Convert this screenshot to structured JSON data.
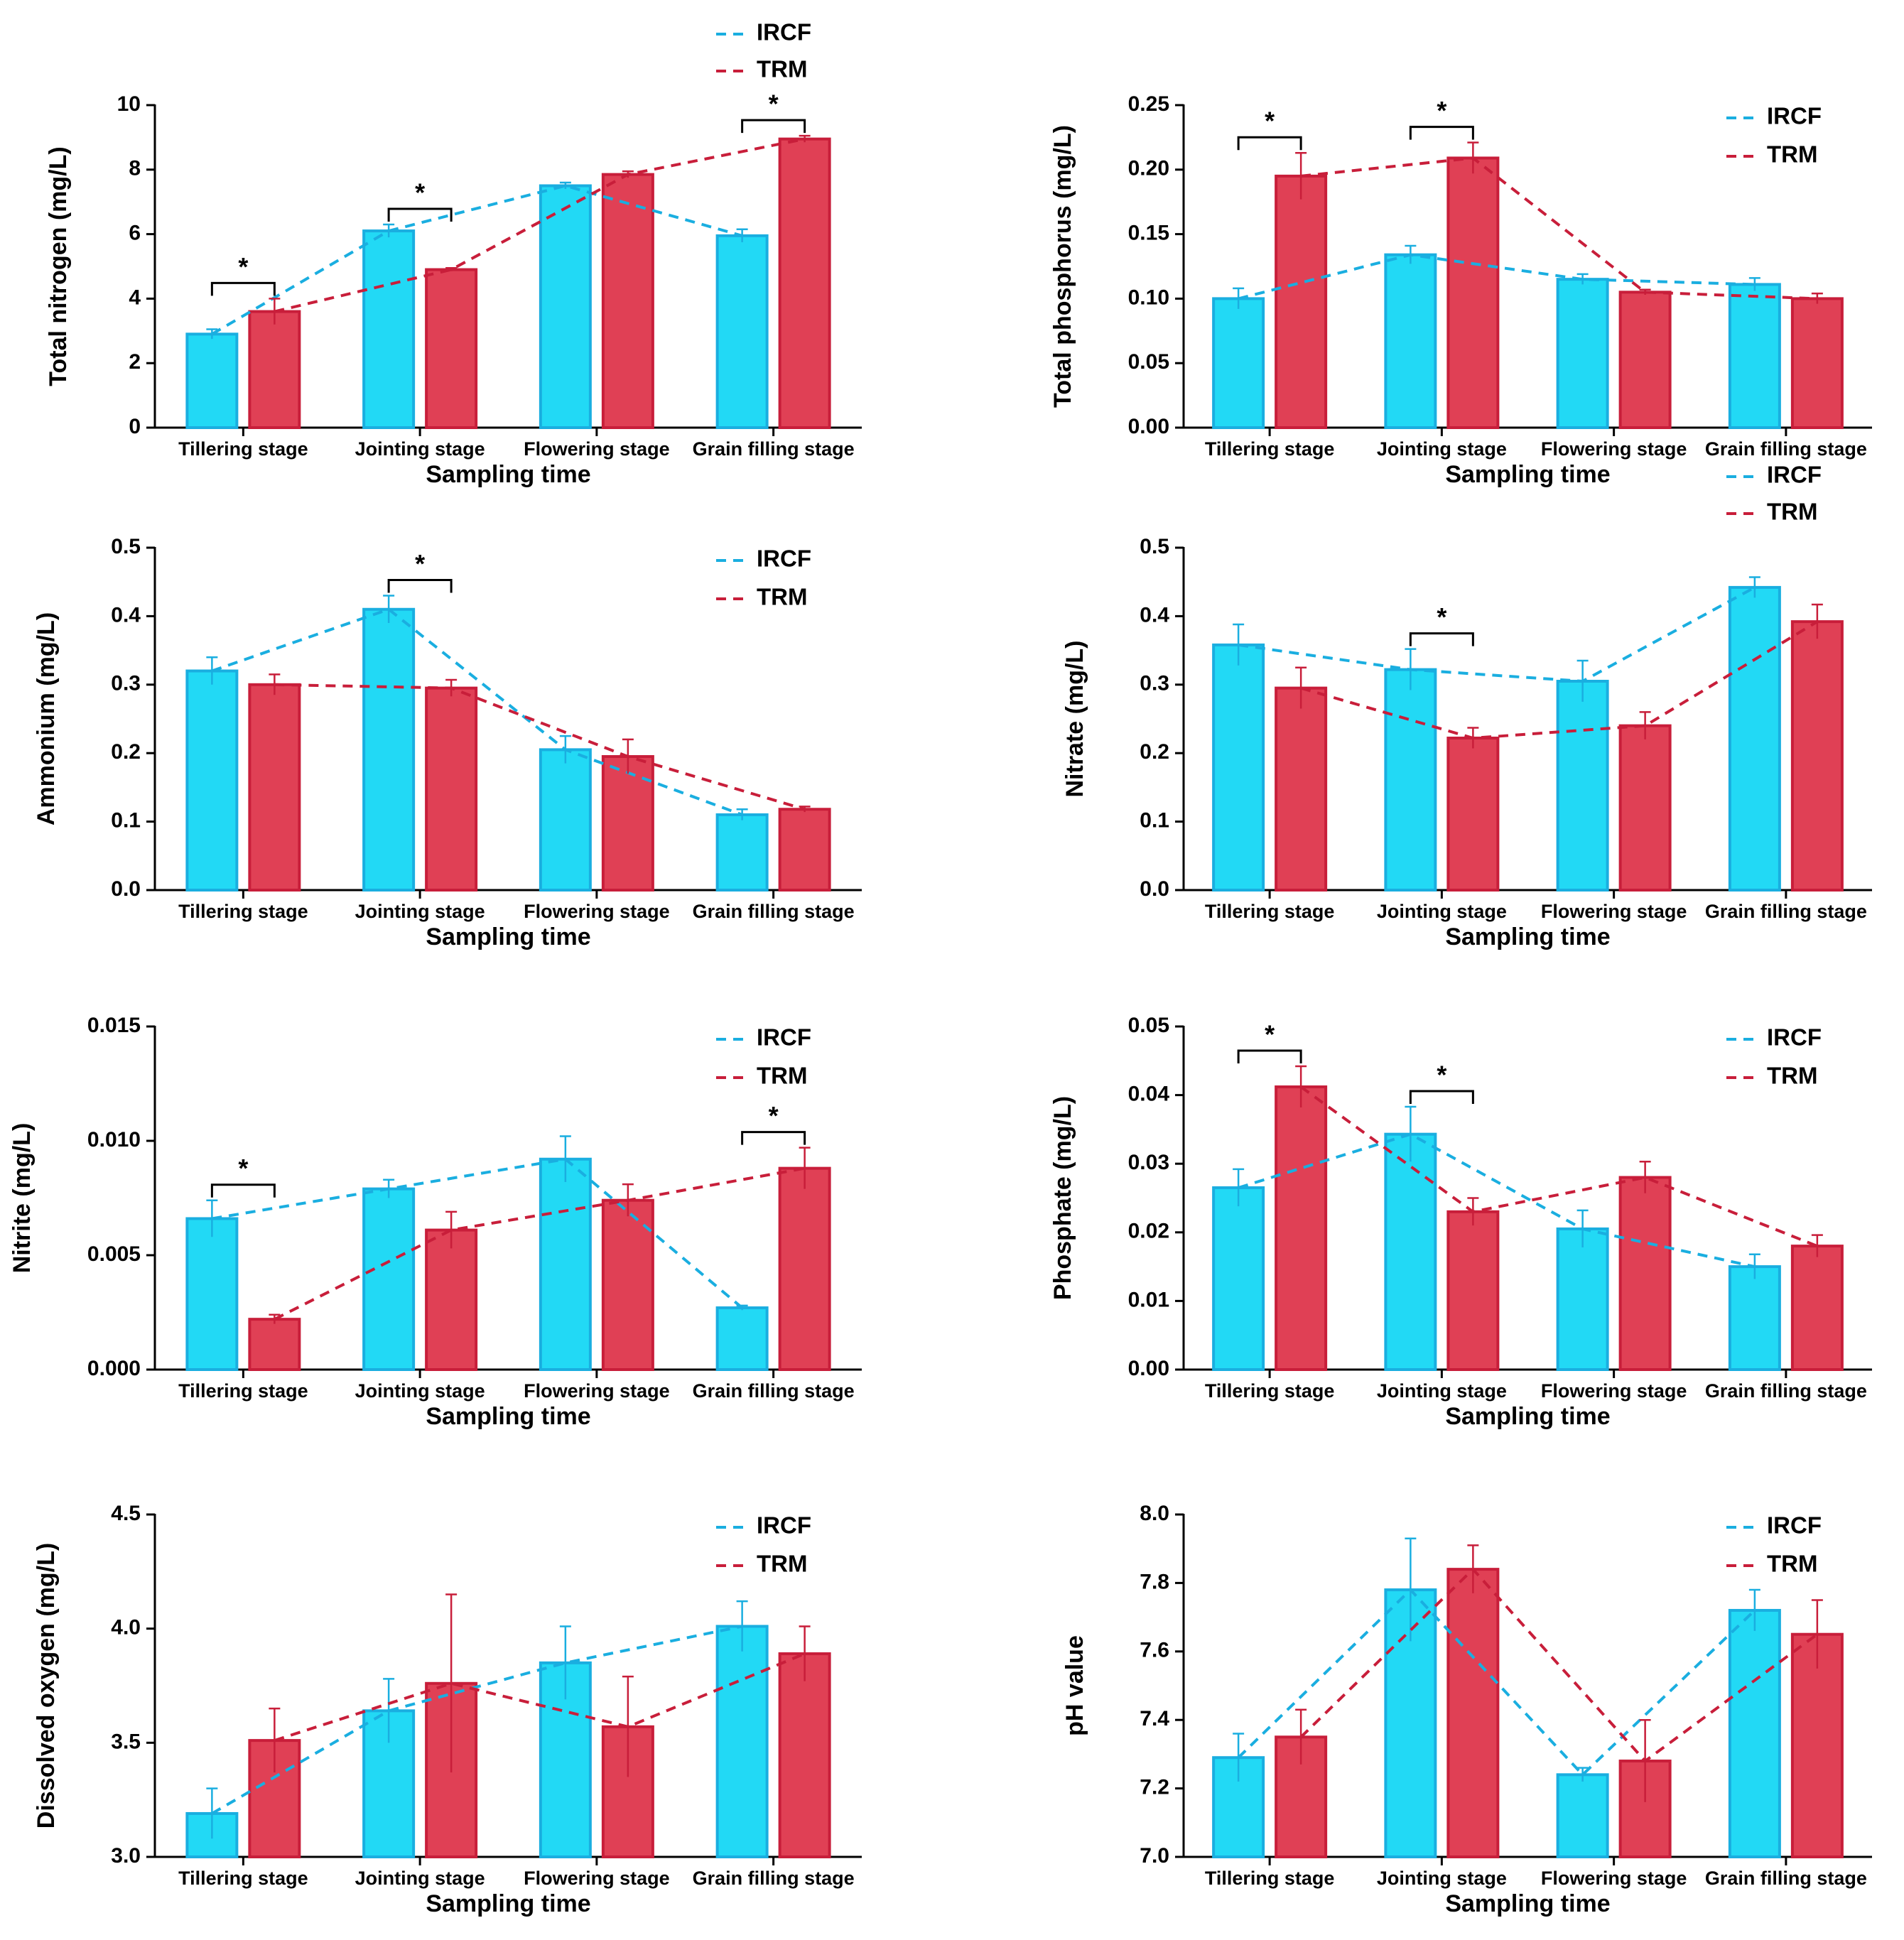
{
  "chart_data": [
    {
      "type": "bar",
      "ylabel": "Total nitrogen (mg/L)",
      "xlabel": "Sampling time",
      "categories": [
        "Tillering stage",
        "Jointing stage",
        "Flowering stage",
        "Grain filling stage"
      ],
      "series": [
        {
          "name": "IRCF",
          "color": "#22d9f5",
          "edgecolor": "#1aaee0",
          "values": [
            2.9,
            6.1,
            7.5,
            5.95
          ],
          "errors": [
            0.15,
            0.2,
            0.1,
            0.2
          ]
        },
        {
          "name": "TRM",
          "color": "#e04055",
          "edgecolor": "#c81e3a",
          "values": [
            3.6,
            4.9,
            7.85,
            8.95
          ],
          "errors": [
            0.4,
            0.05,
            0.1,
            0.1
          ]
        }
      ],
      "ylim": [
        0,
        10
      ],
      "yticks": [
        0,
        2,
        4,
        6,
        8,
        10
      ],
      "legend": "top",
      "annotations": [
        {
          "x": 0,
          "text": "*"
        },
        {
          "x": 1,
          "text": "*"
        },
        {
          "x": 3,
          "text": "*"
        }
      ]
    },
    {
      "type": "bar",
      "ylabel": "Total phosphorus (mg/L)",
      "xlabel": "Sampling time",
      "categories": [
        "Tillering stage",
        "Jointing stage",
        "Flowering stage",
        "Grain filling stage"
      ],
      "series": [
        {
          "name": "IRCF",
          "color": "#22d9f5",
          "edgecolor": "#1aaee0",
          "values": [
            0.1,
            0.134,
            0.115,
            0.111
          ],
          "errors": [
            0.008,
            0.007,
            0.004,
            0.005
          ]
        },
        {
          "name": "TRM",
          "color": "#e04055",
          "edgecolor": "#c81e3a",
          "values": [
            0.195,
            0.209,
            0.105,
            0.1
          ],
          "errors": [
            0.018,
            0.012,
            0.002,
            0.004
          ]
        }
      ],
      "ylim": [
        0,
        0.25
      ],
      "yticks": [
        {
          "value": 0,
          "label": "0.00"
        },
        0.05,
        {
          "value": 0.1,
          "label": "0.10"
        },
        0.15,
        {
          "value": 0.2,
          "label": "0.20"
        },
        0.25
      ],
      "legend": "upper right",
      "annotations": [
        {
          "x": 0,
          "text": "*"
        },
        {
          "x": 1,
          "text": "*"
        }
      ]
    },
    {
      "type": "bar",
      "ylabel": "Ammonium (mg/L)",
      "xlabel": "Sampling time",
      "categories": [
        "Tillering stage",
        "Jointing stage",
        "Flowering stage",
        "Grain filling stage"
      ],
      "series": [
        {
          "name": "IRCF",
          "color": "#22d9f5",
          "edgecolor": "#1aaee0",
          "values": [
            0.32,
            0.41,
            0.205,
            0.11
          ],
          "errors": [
            0.02,
            0.02,
            0.02,
            0.008
          ]
        },
        {
          "name": "TRM",
          "color": "#e04055",
          "edgecolor": "#c81e3a",
          "values": [
            0.3,
            0.295,
            0.195,
            0.118
          ],
          "errors": [
            0.015,
            0.012,
            0.025,
            0.004
          ]
        }
      ],
      "ylim": [
        0,
        0.5
      ],
      "yticks": [
        {
          "value": 0,
          "label": "0.0"
        },
        0.1,
        0.2,
        0.3,
        0.4,
        0.5
      ],
      "legend": "upper right",
      "annotations": [
        {
          "x": 1,
          "text": "*"
        }
      ]
    },
    {
      "type": "bar",
      "ylabel": "Nitrate (mg/L)",
      "xlabel": "Sampling time",
      "categories": [
        "Tillering stage",
        "Jointing stage",
        "Flowering stage",
        "Grain filling stage"
      ],
      "series": [
        {
          "name": "IRCF",
          "color": "#22d9f5",
          "edgecolor": "#1aaee0",
          "values": [
            0.358,
            0.322,
            0.305,
            0.442
          ],
          "errors": [
            0.03,
            0.03,
            0.03,
            0.015
          ]
        },
        {
          "name": "TRM",
          "color": "#e04055",
          "edgecolor": "#c81e3a",
          "values": [
            0.295,
            0.222,
            0.24,
            0.392
          ],
          "errors": [
            0.03,
            0.015,
            0.02,
            0.025
          ]
        }
      ],
      "ylim": [
        0,
        0.5
      ],
      "yticks": [
        {
          "value": 0,
          "label": "0.0"
        },
        0.1,
        0.2,
        0.3,
        0.4,
        0.5
      ],
      "legend": "top",
      "annotations": [
        {
          "x": 1,
          "text": "*"
        }
      ]
    },
    {
      "type": "bar",
      "ylabel": "Nitrite (mg/L)",
      "xlabel": "Sampling time",
      "categories": [
        "Tillering stage",
        "Jointing stage",
        "Flowering stage",
        "Grain filling stage"
      ],
      "series": [
        {
          "name": "IRCF",
          "color": "#22d9f5",
          "edgecolor": "#1aaee0",
          "values": [
            0.0066,
            0.0079,
            0.0092,
            0.0027
          ],
          "errors": [
            0.0008,
            0.0004,
            0.001,
            0.0001
          ]
        },
        {
          "name": "TRM",
          "color": "#e04055",
          "edgecolor": "#c81e3a",
          "values": [
            0.0022,
            0.0061,
            0.0074,
            0.0088
          ],
          "errors": [
            0.0002,
            0.0008,
            0.0007,
            0.0009
          ]
        }
      ],
      "ylim": [
        0,
        0.015
      ],
      "yticks": [
        {
          "value": 0,
          "label": "0.000"
        },
        0.005,
        {
          "value": 0.01,
          "label": "0.010"
        },
        0.015
      ],
      "legend": "upper right",
      "annotations": [
        {
          "x": 0,
          "text": "*"
        },
        {
          "x": 3,
          "text": "*"
        }
      ]
    },
    {
      "type": "bar",
      "ylabel": "Phosphate (mg/L)",
      "xlabel": "Sampling time",
      "categories": [
        "Tillering stage",
        "Jointing stage",
        "Flowering stage",
        "Grain filling stage"
      ],
      "series": [
        {
          "name": "IRCF",
          "color": "#22d9f5",
          "edgecolor": "#1aaee0",
          "values": [
            0.0265,
            0.0343,
            0.0205,
            0.015
          ],
          "errors": [
            0.0027,
            0.004,
            0.0027,
            0.0018
          ]
        },
        {
          "name": "TRM",
          "color": "#e04055",
          "edgecolor": "#c81e3a",
          "values": [
            0.0412,
            0.023,
            0.028,
            0.018
          ],
          "errors": [
            0.003,
            0.002,
            0.0023,
            0.0016
          ]
        }
      ],
      "ylim": [
        0,
        0.05
      ],
      "yticks": [
        {
          "value": 0,
          "label": "0.00"
        },
        0.01,
        0.02,
        0.03,
        0.04,
        0.05
      ],
      "legend": "upper right",
      "annotations": [
        {
          "x": 0,
          "text": "*"
        },
        {
          "x": 1,
          "text": "*"
        }
      ]
    },
    {
      "type": "bar",
      "ylabel": "Dissolved oxygen (mg/L)",
      "xlabel": "Sampling time",
      "categories": [
        "Tillering stage",
        "Jointing stage",
        "Flowering stage",
        "Grain filling stage"
      ],
      "series": [
        {
          "name": "IRCF",
          "color": "#22d9f5",
          "edgecolor": "#1aaee0",
          "values": [
            3.19,
            3.64,
            3.85,
            4.01
          ],
          "errors": [
            0.11,
            0.14,
            0.16,
            0.11
          ]
        },
        {
          "name": "TRM",
          "color": "#e04055",
          "edgecolor": "#c81e3a",
          "values": [
            3.51,
            3.76,
            3.57,
            3.89
          ],
          "errors": [
            0.14,
            0.39,
            0.22,
            0.12
          ]
        }
      ],
      "ylim": [
        3,
        4.5
      ],
      "yticks": [
        {
          "value": 3,
          "label": "3.0"
        },
        3.5,
        {
          "value": 4,
          "label": "4.0"
        },
        4.5
      ],
      "legend": "upper right",
      "annotations": []
    },
    {
      "type": "bar",
      "ylabel": "pH value",
      "xlabel": "Sampling time",
      "categories": [
        "Tillering stage",
        "Jointing stage",
        "Flowering stage",
        "Grain filling stage"
      ],
      "series": [
        {
          "name": "IRCF",
          "color": "#22d9f5",
          "edgecolor": "#1aaee0",
          "values": [
            7.29,
            7.78,
            7.24,
            7.72
          ],
          "errors": [
            0.07,
            0.15,
            0.02,
            0.06
          ]
        },
        {
          "name": "TRM",
          "color": "#e04055",
          "edgecolor": "#c81e3a",
          "values": [
            7.35,
            7.84,
            7.28,
            7.65
          ],
          "errors": [
            0.08,
            0.07,
            0.12,
            0.1
          ]
        }
      ],
      "ylim": [
        7,
        8
      ],
      "yticks": [
        {
          "value": 7,
          "label": "7.0"
        },
        7.2,
        7.4,
        7.6,
        7.8,
        {
          "value": 8,
          "label": "8.0"
        }
      ],
      "legend": "upper right",
      "annotations": []
    }
  ]
}
